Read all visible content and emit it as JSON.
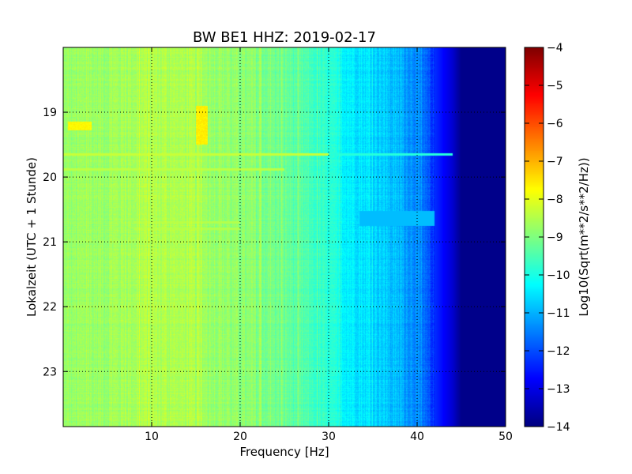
{
  "chart_data": {
    "type": "heatmap",
    "title": "BW BE1 HHZ: 2019-02-17",
    "xlabel": "Frequency [Hz]",
    "ylabel": "Lokalzeit (UTC + 1 Stunde)",
    "xlim": [
      0,
      50
    ],
    "ylim": [
      18.0,
      23.85
    ],
    "y_inverted": true,
    "xticks": [
      10,
      20,
      30,
      40,
      50
    ],
    "xtick_labels": [
      "10",
      "20",
      "30",
      "40",
      "50"
    ],
    "yticks": [
      19,
      20,
      21,
      22,
      23
    ],
    "ytick_labels": [
      "19",
      "20",
      "21",
      "22",
      "23"
    ],
    "grid": true,
    "colorbar": {
      "label": "Log10(Sqrt(m**2/s**2/Hz))",
      "range": [
        -14,
        -4
      ],
      "ticks": [
        -4,
        -5,
        -6,
        -7,
        -8,
        -9,
        -10,
        -11,
        -12,
        -13,
        -14
      ],
      "tick_labels": [
        "−4",
        "−5",
        "−6",
        "−7",
        "−8",
        "−9",
        "−10",
        "−11",
        "−12",
        "−13",
        "−14"
      ],
      "colormap": "jet"
    },
    "spectrum_profile": {
      "frequency_hz": [
        0,
        5,
        10,
        15,
        20,
        25,
        28,
        30,
        32,
        35,
        38,
        40,
        42,
        44,
        45,
        50
      ],
      "log10_amplitude": [
        -8.8,
        -8.7,
        -8.5,
        -8.6,
        -8.9,
        -9.2,
        -9.6,
        -9.9,
        -10.3,
        -10.6,
        -11.0,
        -11.4,
        -12.3,
        -13.2,
        -13.9,
        -13.9
      ]
    },
    "features": [
      {
        "type": "horizontal_line",
        "time_h": 19.65,
        "f_from": 0,
        "f_to": 44,
        "value": -8.3
      },
      {
        "type": "horizontal_line",
        "time_h": 19.88,
        "f_from": 0,
        "f_to": 25,
        "value": -8.4
      },
      {
        "type": "horizontal_line",
        "time_h": 20.7,
        "f_from": 8,
        "f_to": 20,
        "value": -8.5
      },
      {
        "type": "horizontal_line",
        "time_h": 20.8,
        "f_from": 8,
        "f_to": 20,
        "value": -8.5
      },
      {
        "type": "horizontal_band",
        "time_from": 20.52,
        "time_to": 20.75,
        "f_from": 33.5,
        "f_to": 42,
        "value": -10.9
      },
      {
        "type": "patch",
        "time_from": 19.15,
        "time_to": 19.28,
        "f_from": 0.5,
        "f_to": 3.2,
        "value": -7.7
      },
      {
        "type": "patch",
        "time_from": 18.9,
        "time_to": 19.5,
        "f_from": 15,
        "f_to": 16.3,
        "value": -7.6
      }
    ]
  }
}
